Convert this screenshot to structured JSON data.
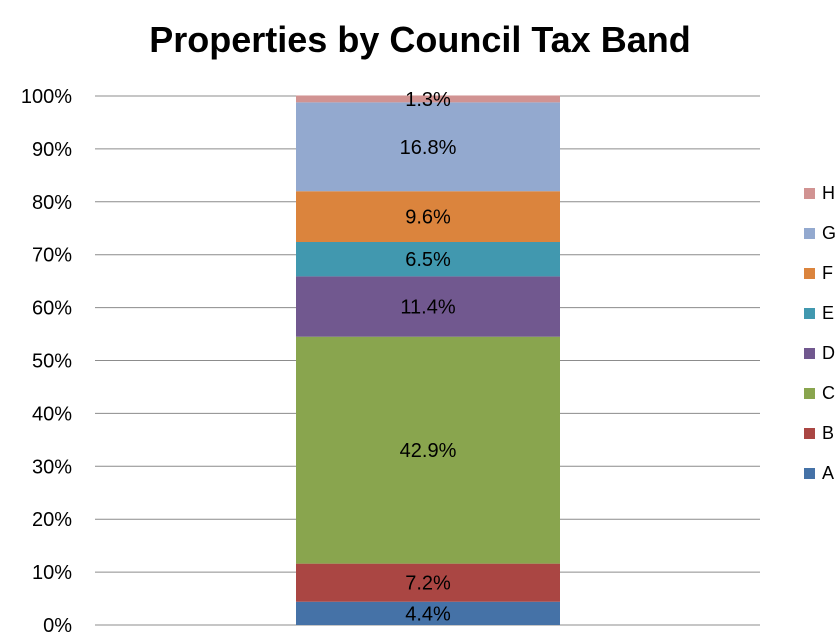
{
  "chart_data": {
    "type": "bar",
    "stacked": true,
    "percent_stacked": true,
    "title": "Properties by Council Tax Band",
    "xlabel": "",
    "ylabel": "",
    "categories": [
      ""
    ],
    "ylim": [
      0,
      100
    ],
    "y_ticks": [
      "0%",
      "10%",
      "20%",
      "30%",
      "40%",
      "50%",
      "60%",
      "70%",
      "80%",
      "90%",
      "100%"
    ],
    "grid": true,
    "legend_position": "right",
    "series": [
      {
        "name": "A",
        "values": [
          4.4
        ],
        "label": "4.4%",
        "color": "#4572A7"
      },
      {
        "name": "B",
        "values": [
          7.2
        ],
        "label": "7.2%",
        "color": "#AA4643"
      },
      {
        "name": "C",
        "values": [
          42.9
        ],
        "label": "42.9%",
        "color": "#89A54E"
      },
      {
        "name": "D",
        "values": [
          11.4
        ],
        "label": "11.4%",
        "color": "#71588F"
      },
      {
        "name": "E",
        "values": [
          6.5
        ],
        "label": "6.5%",
        "color": "#4198AF"
      },
      {
        "name": "F",
        "values": [
          9.6
        ],
        "label": "9.6%",
        "color": "#DB843D"
      },
      {
        "name": "G",
        "values": [
          16.8
        ],
        "label": "16.8%",
        "color": "#93A9CF"
      },
      {
        "name": "H",
        "values": [
          1.3
        ],
        "label": "1.3%",
        "color": "#D19392"
      }
    ]
  }
}
